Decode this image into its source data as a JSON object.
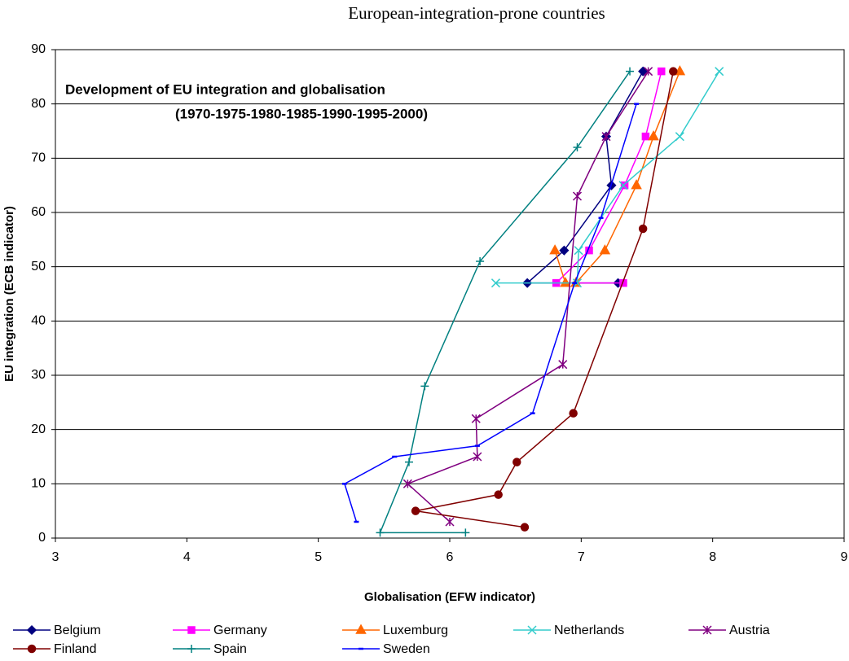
{
  "chart_data": {
    "type": "scatter-line",
    "title": "European-integration-prone countries",
    "annotations": [
      "Development of EU integration and globalisation",
      "(1970-1975-1980-1985-1990-1995-2000)"
    ],
    "x_label": "Globalisation (EFW indicator)",
    "y_label": "EU integration (ECB indicator)",
    "xlim": [
      3,
      9
    ],
    "xticks": [
      3,
      4,
      5,
      6,
      7,
      8,
      9
    ],
    "ylim": [
      0,
      90
    ],
    "yticks": [
      0,
      10,
      20,
      30,
      40,
      50,
      60,
      70,
      80,
      90
    ],
    "grid": true,
    "legend": "bottom",
    "series": [
      {
        "name": "Belgium",
        "color": "#000080",
        "marker": "diamond",
        "x": [
          7.28,
          6.59,
          6.87,
          7.23,
          7.19,
          7.47
        ],
        "values": [
          47,
          47,
          53,
          65,
          74,
          86
        ]
      },
      {
        "name": "Germany",
        "color": "#FF00FF",
        "marker": "square",
        "x": [
          7.32,
          6.81,
          7.06,
          7.33,
          7.49,
          7.61
        ],
        "values": [
          47,
          47,
          53,
          65,
          74,
          86
        ]
      },
      {
        "name": "Luxemburg",
        "color": "#FF6600",
        "marker": "triangle",
        "x": [
          6.8,
          6.88,
          6.96,
          7.18,
          7.42,
          7.55,
          7.75
        ],
        "values": [
          53,
          47,
          47,
          53,
          65,
          74,
          86
        ]
      },
      {
        "name": "Netherlands",
        "color": "#33CCCC",
        "marker": "x",
        "x": [
          6.35,
          6.97,
          6.98,
          7.32,
          7.75,
          8.05
        ],
        "values": [
          47,
          47,
          53,
          65,
          74,
          86
        ]
      },
      {
        "name": "Austria",
        "color": "#800080",
        "marker": "asterisk",
        "x": [
          6.0,
          5.68,
          6.21,
          6.2,
          6.86,
          6.97,
          7.19,
          7.51
        ],
        "values": [
          3,
          10,
          15,
          22,
          32,
          63,
          74,
          86
        ]
      },
      {
        "name": "Finland",
        "color": "#800000",
        "marker": "circle",
        "x": [
          6.57,
          5.74,
          6.37,
          6.51,
          6.94,
          7.47,
          7.7
        ],
        "values": [
          2,
          5,
          8,
          14,
          23,
          57,
          86
        ]
      },
      {
        "name": "Spain",
        "color": "#008080",
        "marker": "plus",
        "x": [
          6.12,
          5.47,
          5.69,
          5.81,
          6.23,
          6.97,
          7.37
        ],
        "values": [
          1,
          1,
          14,
          28,
          51,
          72,
          86
        ]
      },
      {
        "name": "Sweden",
        "color": "#0000FF",
        "marker": "dash",
        "x": [
          5.29,
          5.2,
          5.58,
          6.21,
          6.63,
          6.95,
          7.15,
          7.42
        ],
        "values": [
          3,
          10,
          15,
          17,
          23,
          47,
          59,
          80
        ]
      }
    ]
  }
}
